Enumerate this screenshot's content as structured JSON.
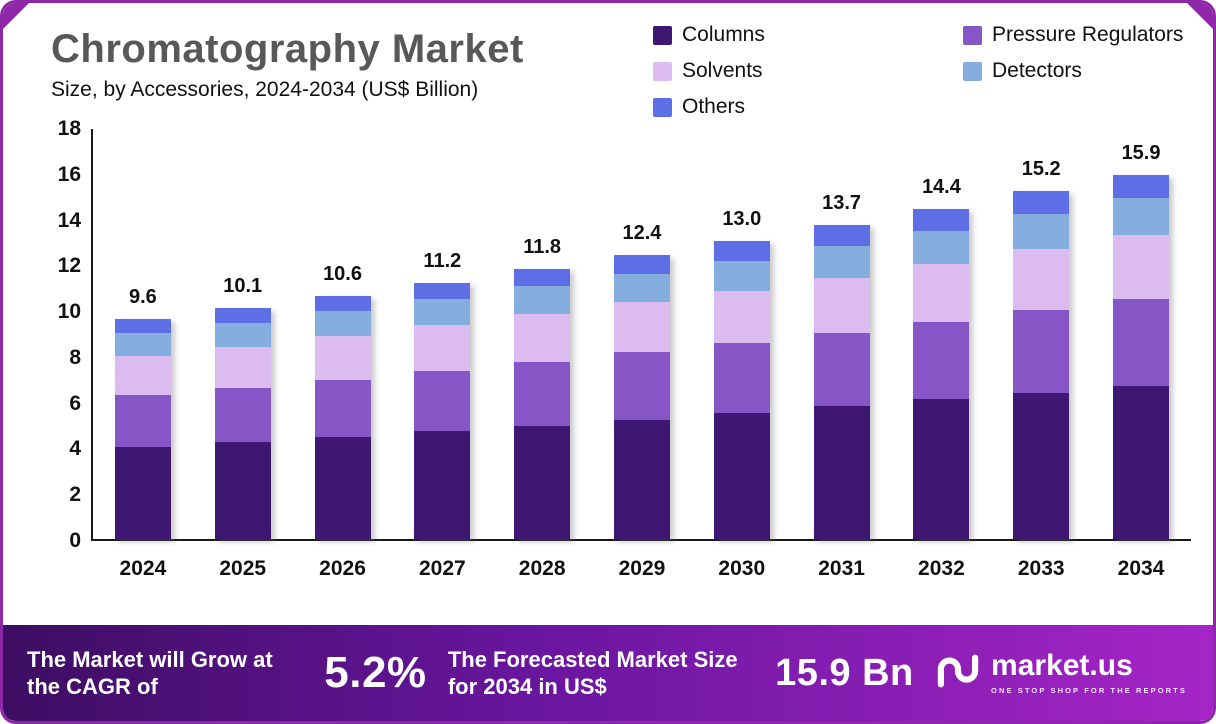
{
  "header": {
    "title": "Chromatography Market",
    "subtitle": "Size, by Accessories, 2024-2034 (US$ Billion)"
  },
  "chart_data": {
    "type": "bar",
    "variant": "stacked",
    "title": "Chromatography Market",
    "subtitle": "Size, by Accessories, 2024-2034 (US$ Billion)",
    "unit": "US$ Billion",
    "legend_position": "top-right",
    "grid": false,
    "ylim": [
      0,
      18
    ],
    "yticks": [
      0,
      2,
      4,
      6,
      8,
      10,
      12,
      14,
      16,
      18
    ],
    "categories": [
      "2024",
      "2025",
      "2026",
      "2027",
      "2028",
      "2029",
      "2030",
      "2031",
      "2032",
      "2033",
      "2034"
    ],
    "totals": [
      9.6,
      10.1,
      10.6,
      11.2,
      11.8,
      12.4,
      13.0,
      13.7,
      14.4,
      15.2,
      15.9
    ],
    "series": [
      {
        "name": "Columns",
        "color": "#3e1772",
        "values": [
          4.0,
          4.25,
          4.45,
          4.7,
          4.95,
          5.2,
          5.5,
          5.8,
          6.1,
          6.4,
          6.7
        ]
      },
      {
        "name": "Pressure Regulators",
        "color": "#8655c6",
        "values": [
          2.3,
          2.35,
          2.5,
          2.65,
          2.8,
          2.95,
          3.05,
          3.2,
          3.4,
          3.6,
          3.8
        ]
      },
      {
        "name": "Solvents",
        "color": "#dcbbf0",
        "values": [
          1.7,
          1.8,
          1.9,
          2.0,
          2.1,
          2.2,
          2.3,
          2.4,
          2.5,
          2.65,
          2.8
        ]
      },
      {
        "name": "Detectors",
        "color": "#85aede",
        "values": [
          1.0,
          1.05,
          1.1,
          1.15,
          1.2,
          1.25,
          1.3,
          1.4,
          1.45,
          1.55,
          1.6
        ]
      },
      {
        "name": "Others",
        "color": "#5e6fe6",
        "values": [
          0.6,
          0.65,
          0.65,
          0.7,
          0.75,
          0.8,
          0.85,
          0.9,
          0.95,
          1.0,
          1.0
        ]
      }
    ]
  },
  "footer": {
    "cagr_label": "The Market will Grow at the CAGR of",
    "cagr_value": "5.2%",
    "forecast_label": "The Forecasted Market Size for 2034 in US$",
    "forecast_value": "15.9 Bn",
    "brand": "market.us",
    "tagline": "ONE STOP SHOP FOR THE REPORTS"
  },
  "colors": {
    "border": "#8e27a8",
    "title": "#57585a",
    "footer_gradient_start": "#3d0d62",
    "footer_gradient_end": "#a625c6"
  }
}
